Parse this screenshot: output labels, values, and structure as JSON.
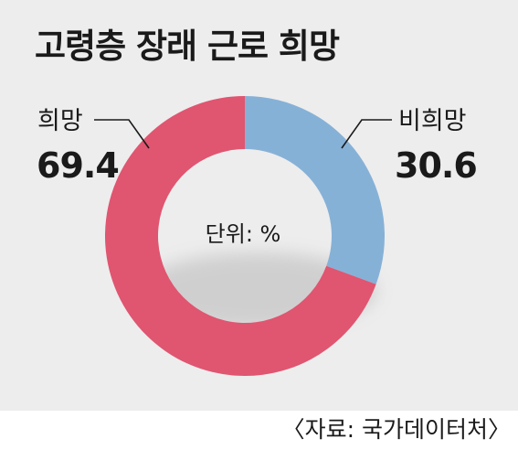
{
  "chart_data": {
    "type": "pie",
    "title": "고령층 장래 근로 희망",
    "unit_label": "단위: %",
    "slices": [
      {
        "label": "비희망",
        "value": 30.6,
        "value_text": "30.6",
        "color": "#86b1d7"
      },
      {
        "label": "희망",
        "value": 69.4,
        "value_text": "69.4",
        "color": "#e05570"
      }
    ]
  },
  "source": "〈자료: 국가데이터처〉"
}
